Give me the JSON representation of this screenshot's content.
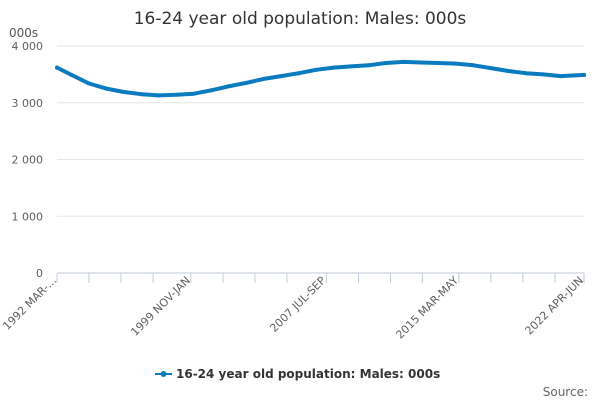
{
  "chart_data": {
    "type": "line",
    "title": "16-24 year old population: Males: 000s",
    "ylabel": "000s",
    "xlabel": "",
    "ylim": [
      0,
      4000
    ],
    "yticks": [
      0,
      1000,
      2000,
      3000,
      4000
    ],
    "ytick_labels": [
      "0",
      "1 000",
      "2 000",
      "3 000",
      "4 000"
    ],
    "x_range": [
      1992.17,
      2022.33
    ],
    "x_tick_positions": [
      1992.17,
      1994.0,
      1995.83,
      1997.67,
      1999.83,
      2001.67,
      2003.5,
      2005.33,
      2007.58,
      2009.42,
      2011.25,
      2013.08,
      2015.17,
      2017.0,
      2018.83,
      2020.67,
      2022.33
    ],
    "x_label_positions": [
      1992.17,
      1999.83,
      2007.58,
      2015.17,
      2022.33
    ],
    "x_labels": [
      "1992 MAR-...",
      "1999 NOV-JAN",
      "2007 JUL-SEP",
      "2015 MAR-MAY",
      "2022 APR-JUN"
    ],
    "series": [
      {
        "name": "16-24 year old population: Males: 000s",
        "color": "#0a7bbf",
        "points": [
          [
            1992.17,
            3620
          ],
          [
            1993.0,
            3490
          ],
          [
            1994.0,
            3340
          ],
          [
            1995.0,
            3250
          ],
          [
            1996.0,
            3190
          ],
          [
            1997.0,
            3150
          ],
          [
            1998.0,
            3130
          ],
          [
            1999.0,
            3140
          ],
          [
            2000.0,
            3160
          ],
          [
            2001.0,
            3220
          ],
          [
            2002.0,
            3290
          ],
          [
            2003.0,
            3350
          ],
          [
            2004.0,
            3420
          ],
          [
            2005.0,
            3470
          ],
          [
            2006.0,
            3520
          ],
          [
            2007.0,
            3580
          ],
          [
            2008.0,
            3620
          ],
          [
            2009.0,
            3640
          ],
          [
            2010.0,
            3660
          ],
          [
            2011.0,
            3700
          ],
          [
            2012.0,
            3720
          ],
          [
            2013.0,
            3710
          ],
          [
            2014.0,
            3700
          ],
          [
            2015.0,
            3690
          ],
          [
            2016.0,
            3660
          ],
          [
            2017.0,
            3610
          ],
          [
            2018.0,
            3560
          ],
          [
            2019.0,
            3520
          ],
          [
            2020.0,
            3500
          ],
          [
            2021.0,
            3470
          ],
          [
            2022.33,
            3490
          ]
        ]
      }
    ],
    "grid": true,
    "legend": "bottom"
  },
  "footer": {
    "source_label": "Source:"
  }
}
